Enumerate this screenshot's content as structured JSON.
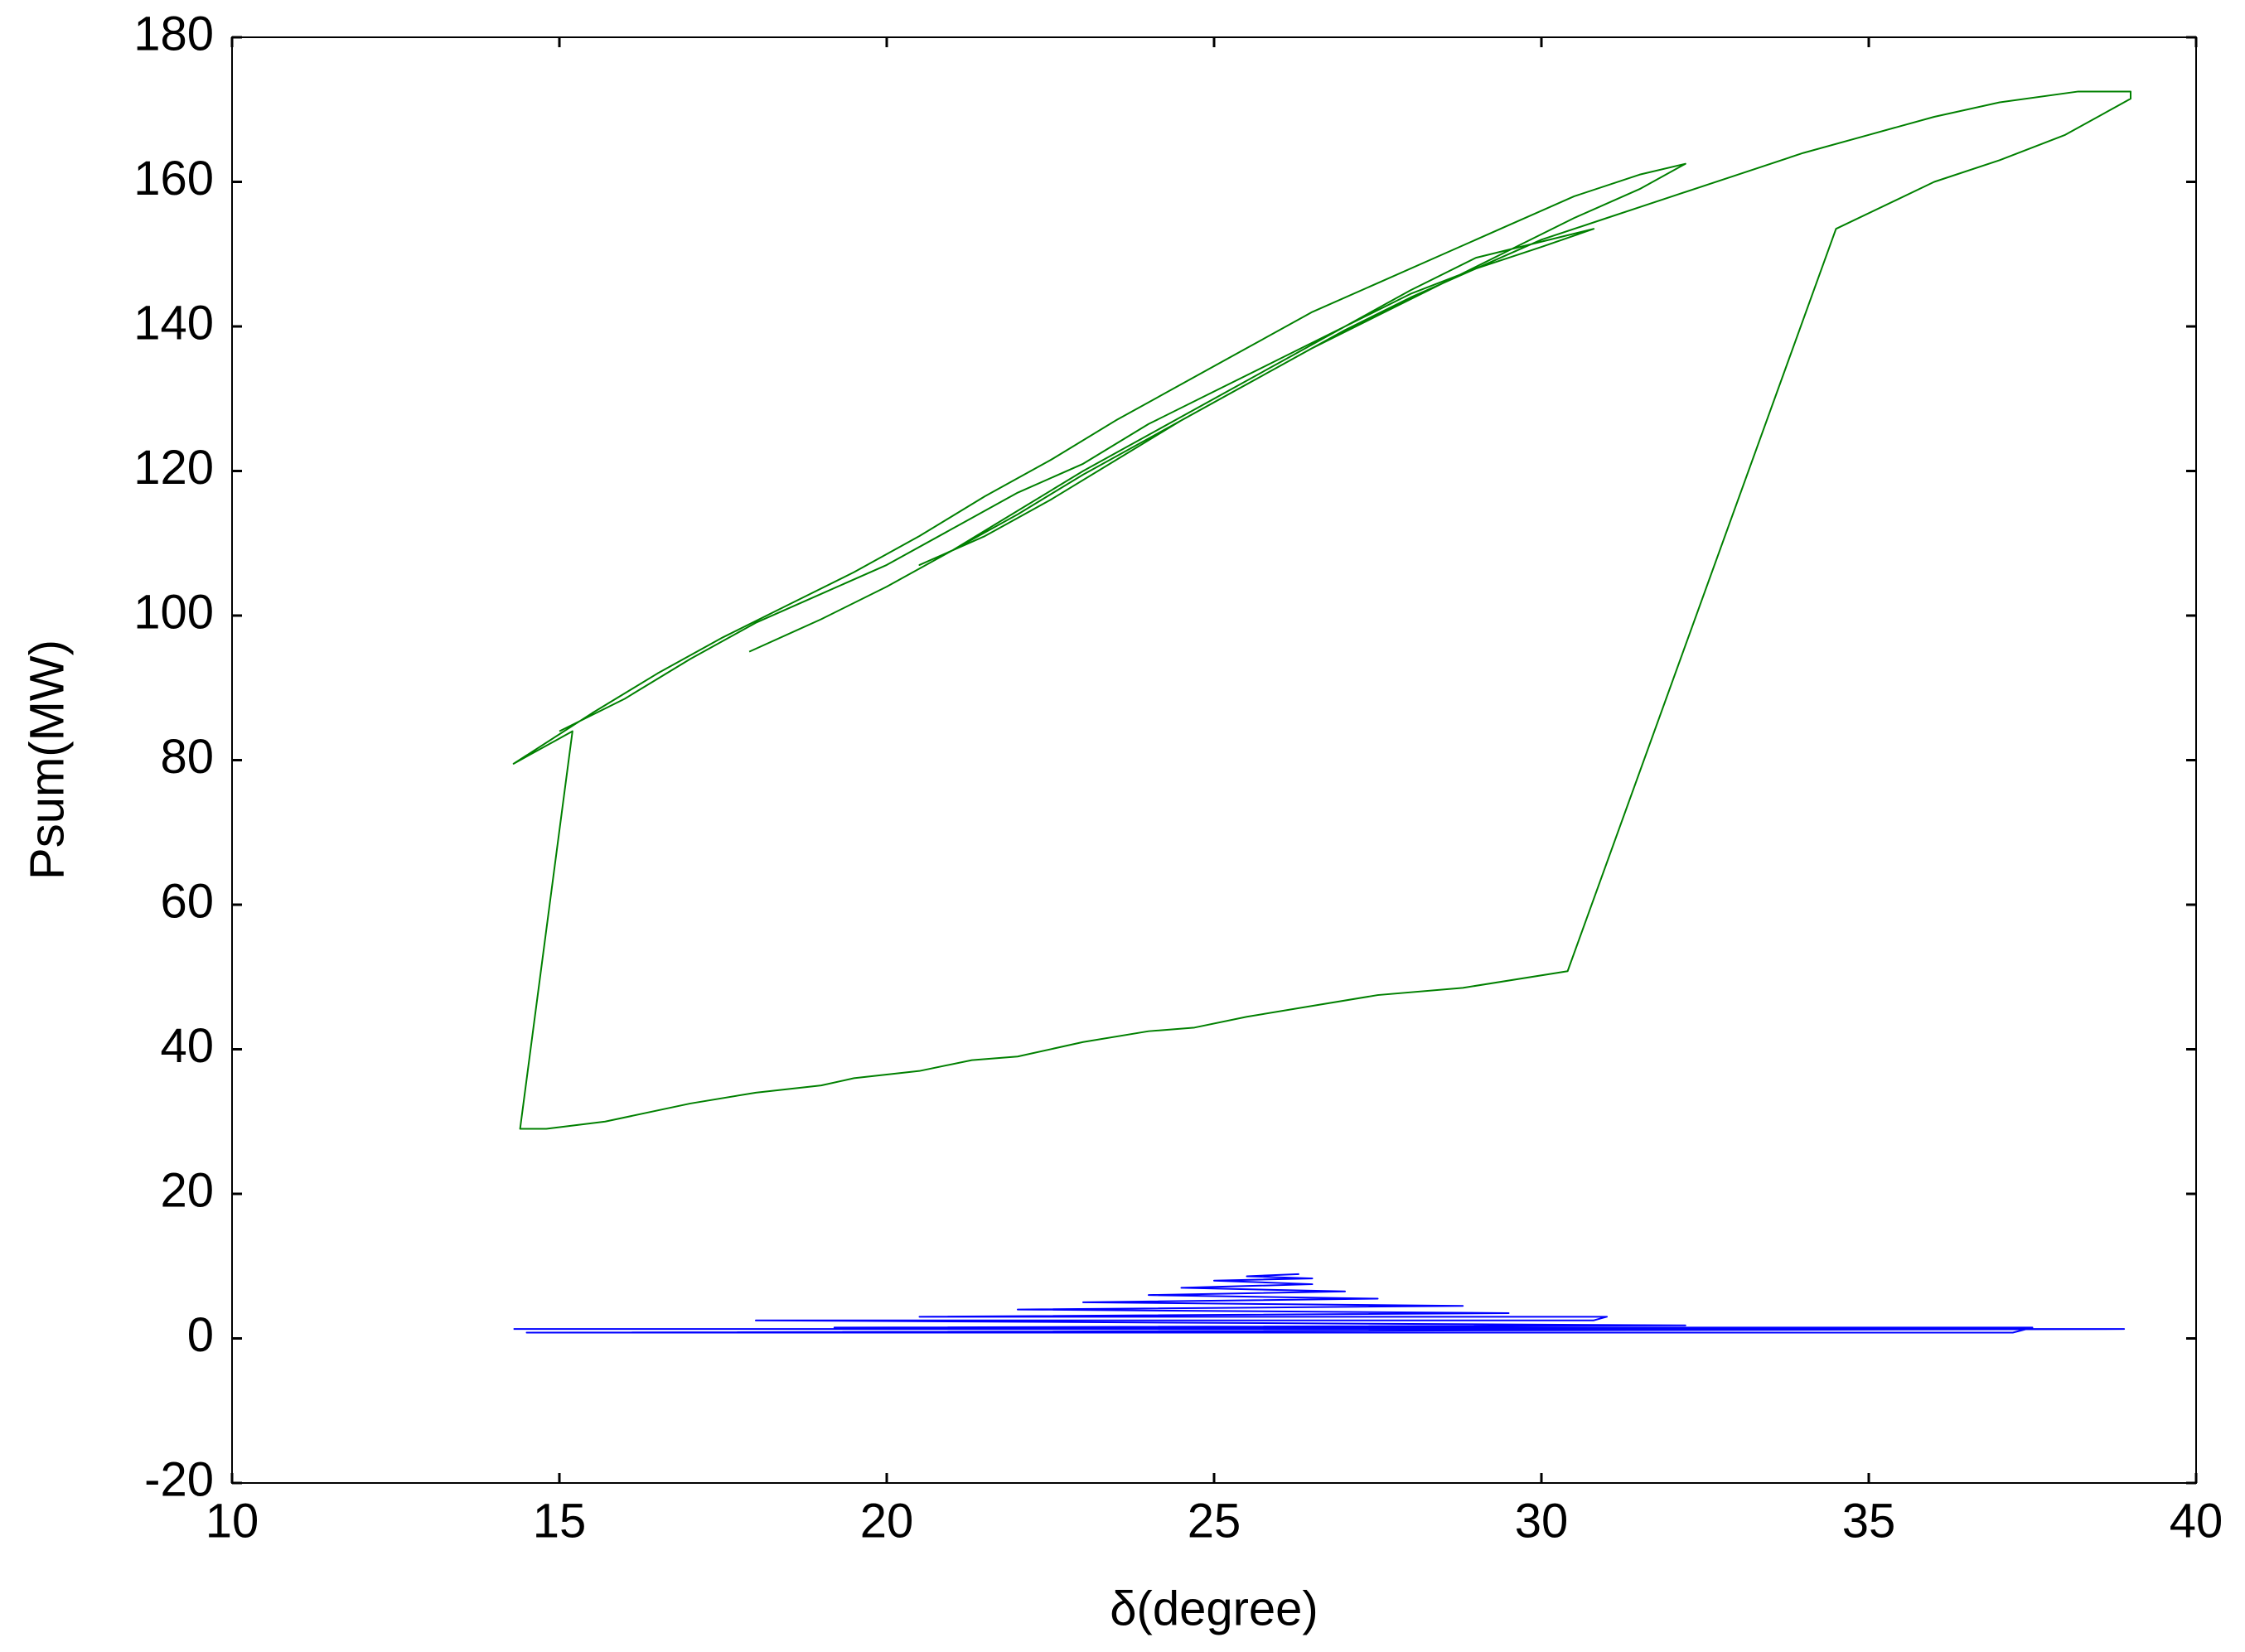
{
  "chart_data": {
    "type": "line",
    "x_label": "δ(degree)",
    "y_label": "Psum(MW)",
    "xlim": [
      10,
      40
    ],
    "ylim": [
      -20,
      180
    ],
    "xticks": [
      10,
      15,
      20,
      25,
      30,
      35,
      40
    ],
    "yticks": [
      -20,
      0,
      20,
      40,
      60,
      80,
      100,
      120,
      140,
      160,
      180
    ],
    "grid": false,
    "series": [
      {
        "color": "#008000",
        "x": [
          17.9,
          19,
          20,
          21,
          22,
          23,
          24,
          25,
          26,
          27,
          28,
          29,
          30.8,
          30,
          29,
          28,
          27,
          26,
          25,
          24,
          23,
          22,
          21,
          20.5,
          21.5,
          22.5,
          23.5,
          24.5,
          25.5,
          26.5,
          27.5,
          28.5,
          29.5,
          30.5,
          31.5,
          32.2,
          31.5,
          30.5,
          29.5,
          28.5,
          27.5,
          26.5,
          25.5,
          24.5,
          23.5,
          22.5,
          21.5,
          20.5,
          19.5,
          18.5,
          17.5,
          16.5,
          15.5,
          14.3,
          15,
          15.2,
          14.4,
          14.8,
          15.7,
          17,
          18,
          19,
          19.5,
          20.5,
          21.3,
          22,
          23,
          24,
          24.7,
          25.5,
          26.5,
          27.5,
          28.8,
          30.4,
          34.5,
          36,
          37,
          38,
          39,
          39,
          38.2,
          37,
          36,
          35,
          34,
          33,
          32,
          31,
          30,
          29,
          28,
          27,
          26,
          25,
          24,
          23,
          22,
          21,
          20,
          19,
          18,
          17,
          16,
          15
        ],
        "values": [
          95,
          99.5,
          104,
          109,
          114.5,
          120,
          125,
          130,
          135,
          140,
          145,
          149.5,
          153.5,
          151,
          148,
          144,
          139.5,
          134.5,
          129.5,
          124.5,
          119.5,
          114,
          109,
          107,
          111,
          116,
          121.5,
          127,
          132,
          137,
          141.5,
          146,
          150.5,
          155,
          159,
          162.5,
          161,
          158,
          154,
          150,
          146,
          142,
          137,
          132,
          127,
          121.5,
          116.5,
          111,
          106,
          101.5,
          97,
          92,
          86.5,
          79.5,
          83,
          84,
          29,
          29,
          30,
          32.5,
          34,
          35,
          36,
          37,
          38.5,
          39,
          41,
          42.5,
          43,
          44.5,
          46,
          47.5,
          48.5,
          50.8,
          153.5,
          160,
          163,
          166.5,
          171.5,
          172.5,
          172.5,
          171,
          169,
          166.5,
          164,
          161,
          158,
          155,
          152,
          148,
          144.5,
          140,
          135.5,
          131,
          126.5,
          121,
          117,
          112,
          107,
          103,
          99,
          94,
          88.5,
          84
        ]
      },
      {
        "color": "#0000ff",
        "x": [
          14.3,
          38.9,
          14.5,
          37.2,
          37.5,
          19.2,
          32.2,
          18,
          30.8,
          31,
          20.5,
          29.5,
          22,
          28.8,
          23,
          27.5,
          24,
          27,
          24.5,
          26.5,
          25,
          26.5,
          25.5,
          26.3
        ],
        "values": [
          1.3,
          1.3,
          0.8,
          0.8,
          1.5,
          1.5,
          1.8,
          2.5,
          2.5,
          3,
          3,
          3.5,
          4,
          4.5,
          5,
          5.5,
          6,
          6.5,
          7,
          7.5,
          8,
          8.3,
          8.6,
          8.9
        ]
      }
    ]
  }
}
